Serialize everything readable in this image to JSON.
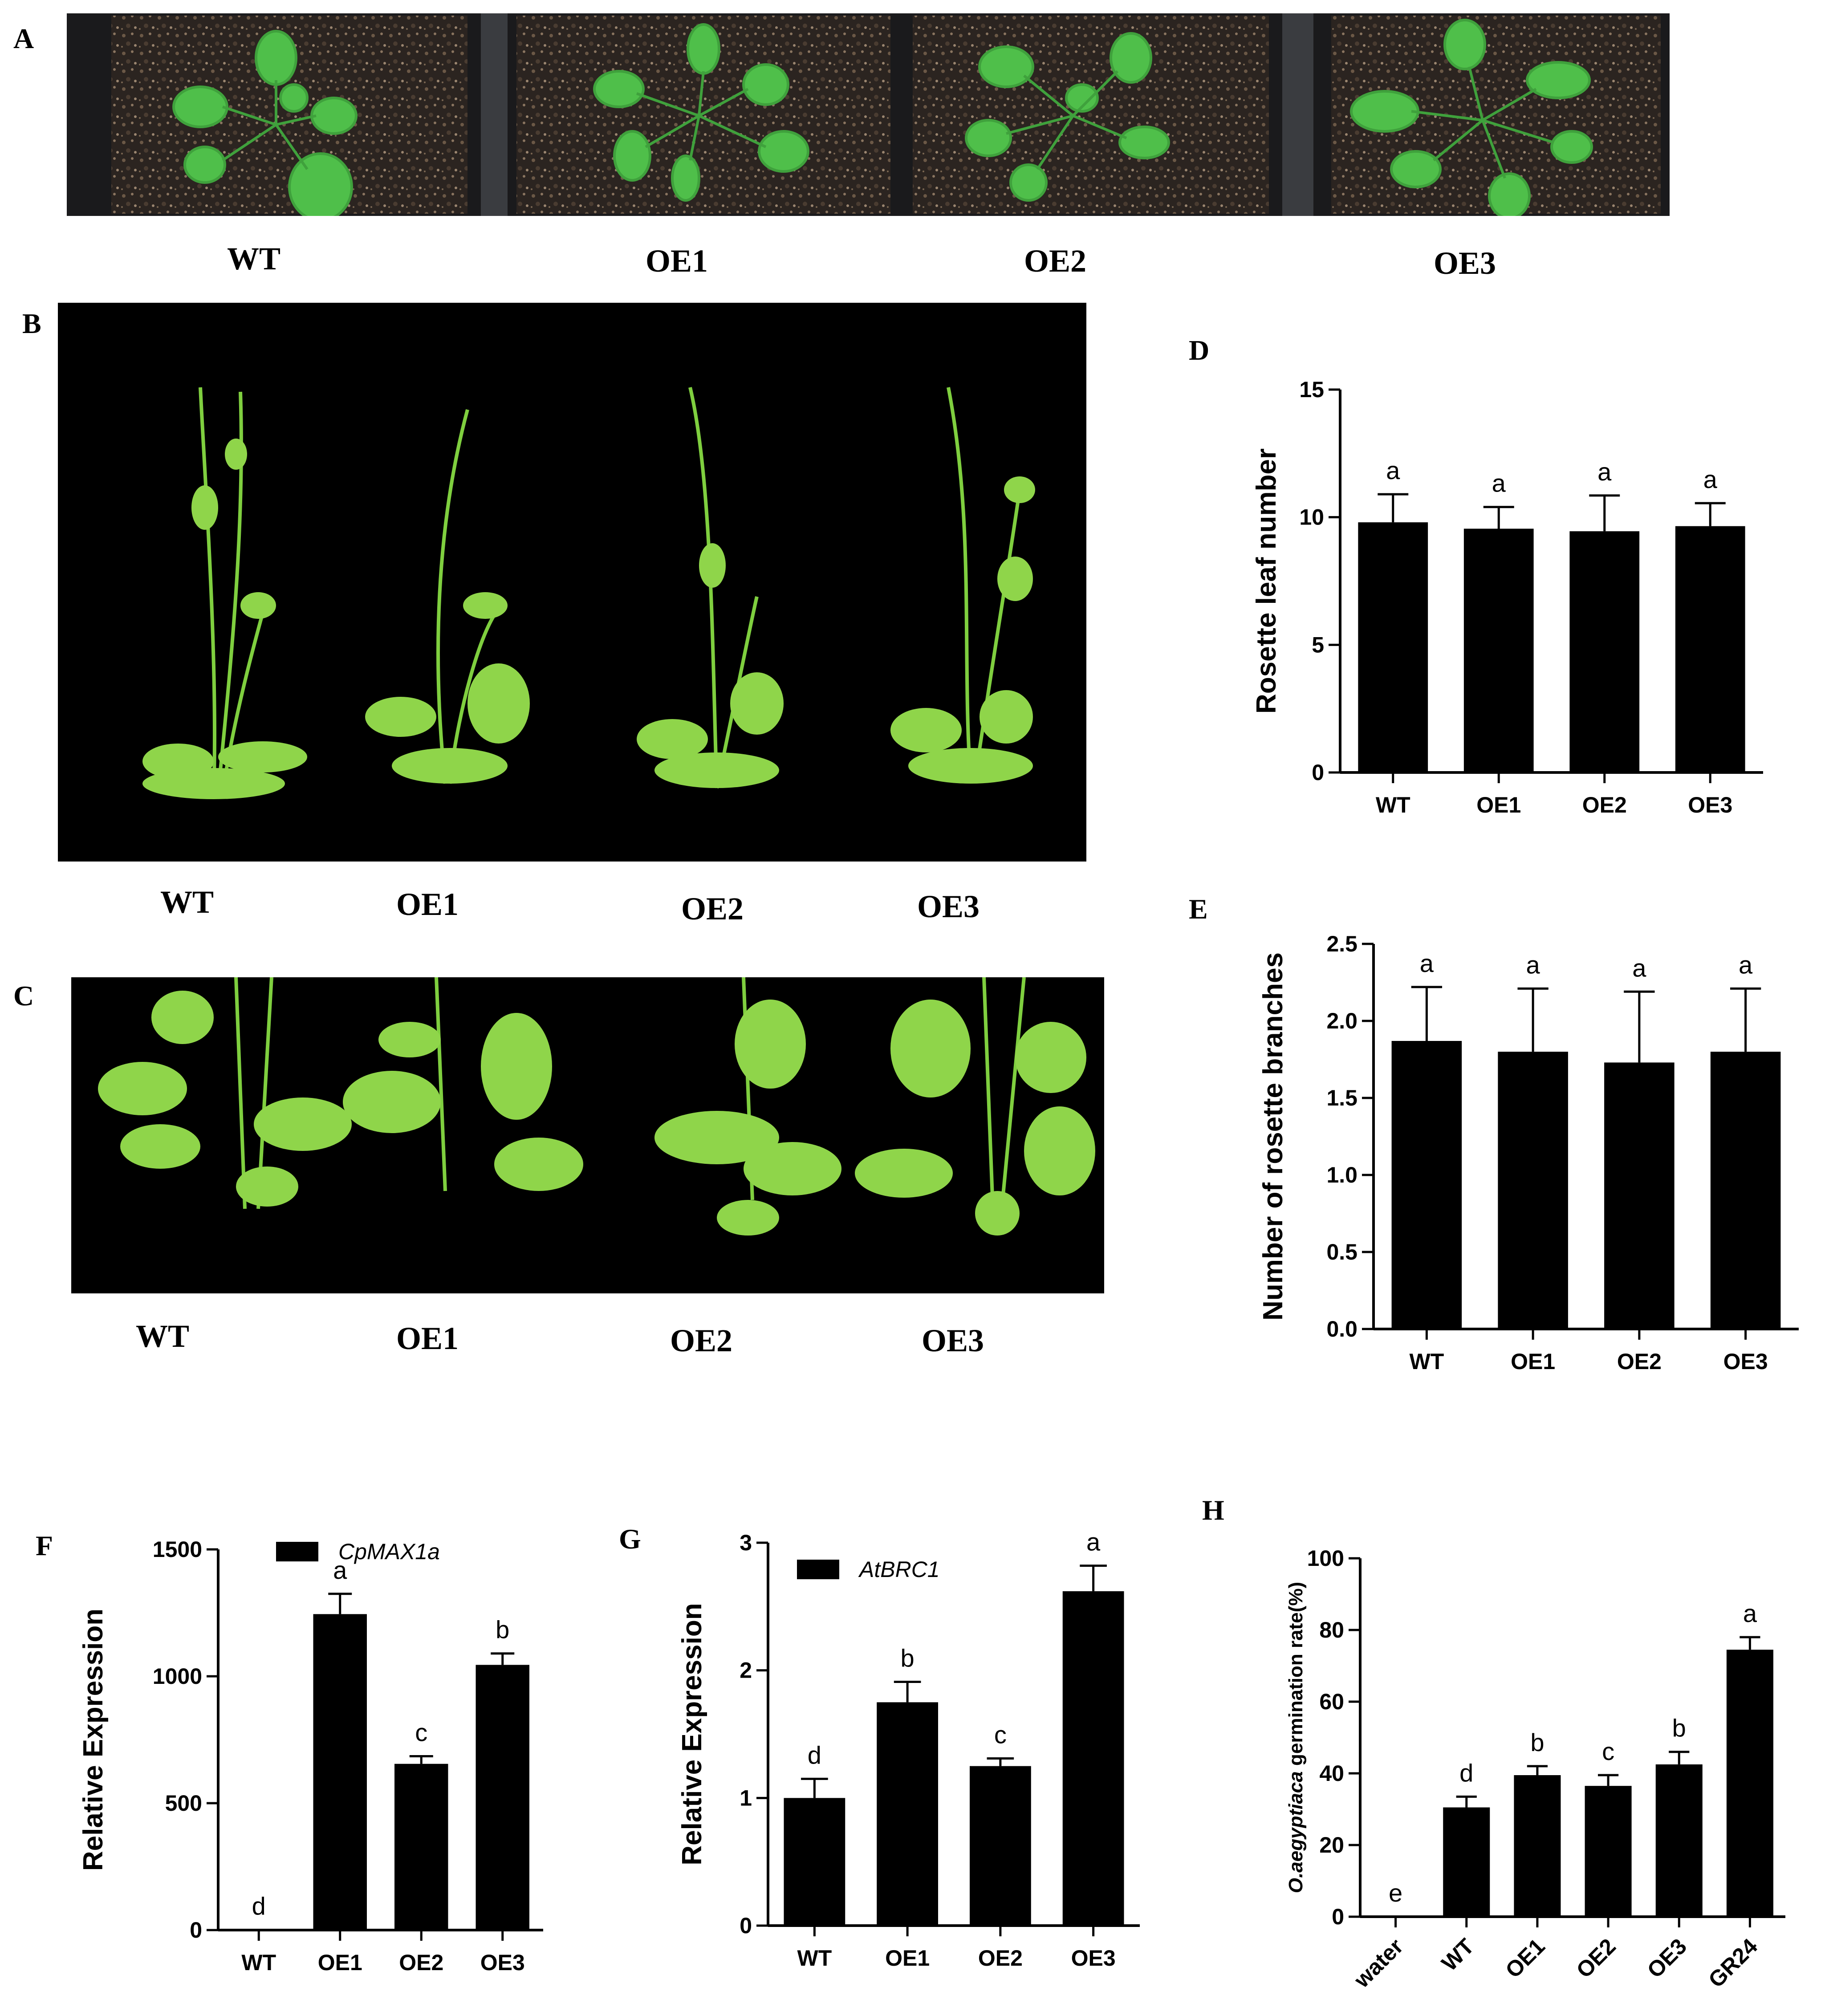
{
  "panels": {
    "A": {
      "letter": "A",
      "labels": [
        "WT",
        "OE1",
        "OE2",
        "OE3"
      ]
    },
    "B": {
      "letter": "B",
      "labels": [
        "WT",
        "OE1",
        "OE2",
        "OE3"
      ]
    },
    "C": {
      "letter": "C",
      "labels": [
        "WT",
        "OE1",
        "OE2",
        "OE3"
      ]
    }
  },
  "chart_data": [
    {
      "id": "D",
      "letter": "D",
      "type": "bar",
      "categories": [
        "WT",
        "OE1",
        "OE2",
        "OE3"
      ],
      "values": [
        9.8,
        9.55,
        9.45,
        9.65
      ],
      "errors": [
        1.1,
        0.85,
        1.4,
        0.9
      ],
      "sig_labels": [
        "a",
        "a",
        "a",
        "a"
      ],
      "ylabel": "Rosette leaf number",
      "ylim": [
        0,
        15
      ],
      "yticks": [
        0,
        5,
        10,
        15
      ],
      "tick_labels": [
        "0",
        "5",
        "10",
        "15"
      ],
      "grid": false,
      "bar_color": "#000000"
    },
    {
      "id": "E",
      "letter": "E",
      "type": "bar",
      "categories": [
        "WT",
        "OE1",
        "OE2",
        "OE3"
      ],
      "values": [
        1.87,
        1.8,
        1.73,
        1.8
      ],
      "errors": [
        0.35,
        0.41,
        0.46,
        0.41
      ],
      "sig_labels": [
        "a",
        "a",
        "a",
        "a"
      ],
      "ylabel": "Number of rosette branches",
      "ylim": [
        0,
        2.5
      ],
      "yticks": [
        0,
        0.5,
        1,
        1.5,
        2,
        2.5
      ],
      "tick_labels": [
        "0.0",
        "0.5",
        "1.0",
        "1.5",
        "2.0",
        "2.5"
      ],
      "grid": false,
      "bar_color": "#000000"
    },
    {
      "id": "F",
      "letter": "F",
      "type": "bar",
      "categories": [
        "WT",
        "OE1",
        "OE2",
        "OE3"
      ],
      "values": [
        1,
        1245,
        655,
        1045
      ],
      "errors": [
        0,
        80,
        30,
        45
      ],
      "sig_labels": [
        "d",
        "a",
        "c",
        "b"
      ],
      "ylabel": "Relative Expression",
      "legend": "CpMAX1a",
      "ylim": [
        0,
        1500
      ],
      "yticks": [
        0,
        500,
        1000,
        1500
      ],
      "tick_labels": [
        "0",
        "500",
        "1000",
        "1500"
      ],
      "grid": false,
      "bar_color": "#000000"
    },
    {
      "id": "G",
      "letter": "G",
      "type": "bar",
      "categories": [
        "WT",
        "OE1",
        "OE2",
        "OE3"
      ],
      "values": [
        1.0,
        1.75,
        1.25,
        2.62
      ],
      "errors": [
        0.15,
        0.16,
        0.06,
        0.2
      ],
      "sig_labels": [
        "d",
        "b",
        "c",
        "a"
      ],
      "ylabel": "Relative Expression",
      "legend": "AtBRC1",
      "ylim": [
        0,
        3
      ],
      "yticks": [
        0,
        1,
        2,
        3
      ],
      "tick_labels": [
        "0",
        "1",
        "2",
        "3"
      ],
      "grid": false,
      "bar_color": "#000000"
    },
    {
      "id": "H",
      "letter": "H",
      "type": "bar",
      "categories": [
        "water",
        "WT",
        "OE1",
        "OE2",
        "OE3",
        "GR24"
      ],
      "values": [
        0,
        30.5,
        39.5,
        36.5,
        42.5,
        74.5
      ],
      "errors": [
        0,
        3,
        2.5,
        3,
        3.5,
        3.5
      ],
      "sig_labels": [
        "e",
        "d",
        "b",
        "c",
        "b",
        "a"
      ],
      "ylabel_italic": "O.aegyptiaca",
      "ylabel_rest": " germination rate(%)",
      "ylim": [
        0,
        100
      ],
      "yticks": [
        0,
        20,
        40,
        60,
        80,
        100
      ],
      "tick_labels": [
        "0",
        "20",
        "40",
        "60",
        "80",
        "100"
      ],
      "grid": false,
      "bar_color": "#000000",
      "x_tick_rotation": -45
    }
  ]
}
